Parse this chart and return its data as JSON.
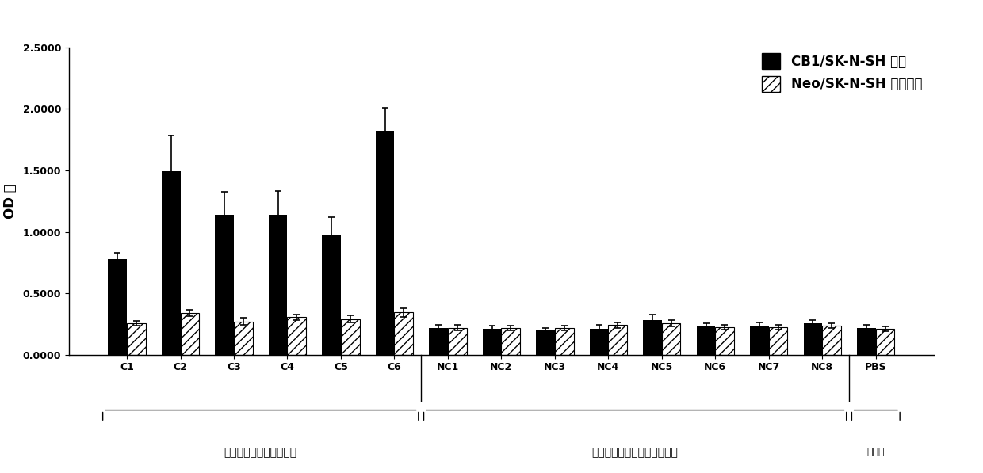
{
  "categories": [
    "C1",
    "C2",
    "C3",
    "C4",
    "C5",
    "C6",
    "NC1",
    "NC2",
    "NC3",
    "NC4",
    "NC5",
    "NC6",
    "NC7",
    "NC8",
    "PBS"
  ],
  "cb1_values": [
    0.775,
    1.49,
    1.14,
    1.14,
    0.975,
    1.82,
    0.215,
    0.21,
    0.195,
    0.21,
    0.285,
    0.23,
    0.235,
    0.255,
    0.215
  ],
  "neo_values": [
    0.255,
    0.34,
    0.27,
    0.305,
    0.29,
    0.345,
    0.22,
    0.215,
    0.215,
    0.24,
    0.255,
    0.225,
    0.225,
    0.235,
    0.21
  ],
  "cb1_errors": [
    0.055,
    0.29,
    0.185,
    0.195,
    0.145,
    0.19,
    0.03,
    0.025,
    0.025,
    0.03,
    0.04,
    0.028,
    0.028,
    0.03,
    0.025
  ],
  "neo_errors": [
    0.02,
    0.025,
    0.03,
    0.025,
    0.03,
    0.035,
    0.02,
    0.02,
    0.02,
    0.022,
    0.025,
    0.02,
    0.02,
    0.02,
    0.018
  ],
  "group1_label": "大麻吸食人员的毛发样本",
  "group2_label": "无吸食史的正常人的毛发样本",
  "group3_label_line1": "空白对",
  "group3_label_line2": "照",
  "ylabel": "OD 値",
  "ylim": [
    0,
    2.5
  ],
  "yticks": [
    0.0,
    0.5,
    1.0,
    1.5,
    2.0,
    2.5
  ],
  "ytick_labels": [
    "0.0000",
    "0.5000",
    "1.0000",
    "1.5000",
    "2.0000",
    "2.5000"
  ],
  "legend1": "CB1/SK-N-SH 细胞",
  "legend2": "Neo/SK-N-SH 对照细胞",
  "bar_width": 0.35,
  "background_color": "#ffffff"
}
